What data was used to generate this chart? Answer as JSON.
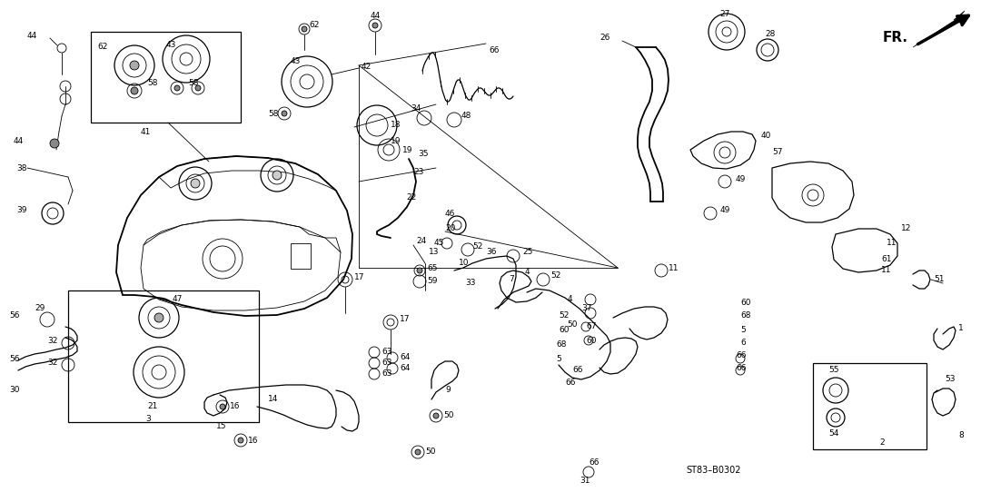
{
  "bg_color": "#ffffff",
  "diagram_ref": "ST83–B0302",
  "fr_label": "FR.",
  "fig_width": 10.8,
  "fig_height": 5.53,
  "dpi": 100,
  "lw_thin": 0.6,
  "lw_med": 0.9,
  "lw_thick": 1.3
}
